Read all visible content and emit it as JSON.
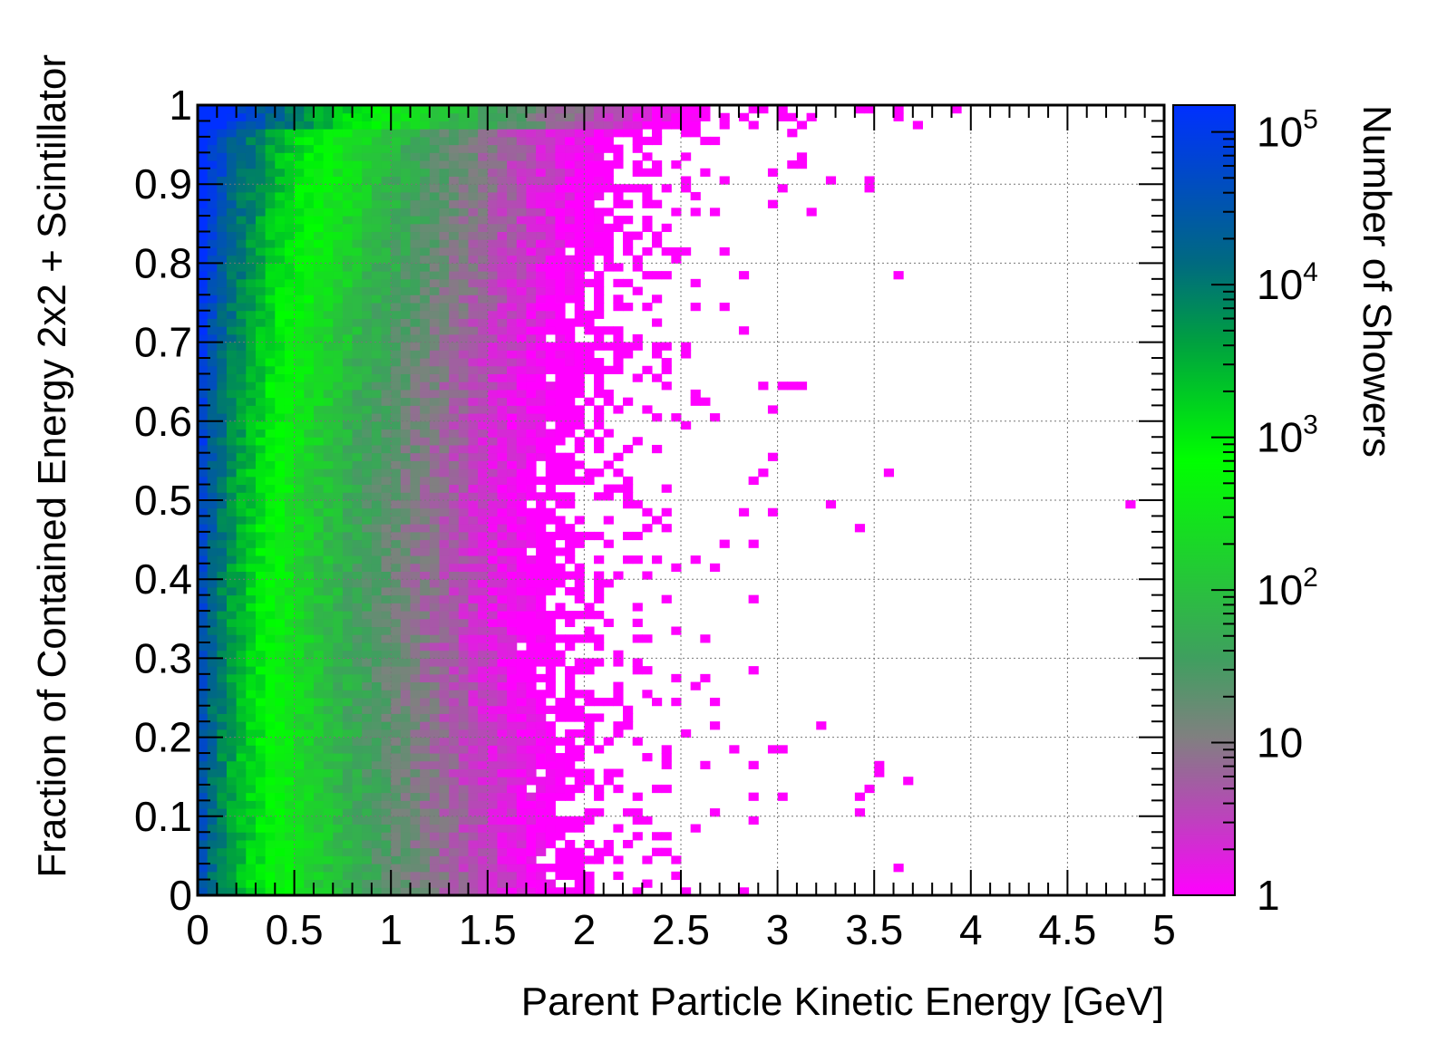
{
  "chart_data": {
    "type": "heatmap",
    "title": "",
    "xlabel": "Parent Particle Kinetic Energy [GeV]",
    "ylabel": "Fraction of Contained Energy 2x2 + Scintillator",
    "zlabel": "Number of Showers",
    "xlim": [
      0,
      5
    ],
    "ylim": [
      0,
      1
    ],
    "zlim": [
      1,
      150000
    ],
    "z_scale": "log",
    "grid": true,
    "x_ticks": [
      "0",
      "0.5",
      "1",
      "1.5",
      "2",
      "2.5",
      "3",
      "3.5",
      "4",
      "4.5",
      "5"
    ],
    "y_ticks": [
      "0",
      "0.1",
      "0.2",
      "0.3",
      "0.4",
      "0.5",
      "0.6",
      "0.7",
      "0.8",
      "0.9",
      "1"
    ],
    "z_ticks": [
      {
        "value": 1,
        "base": "1",
        "exp": ""
      },
      {
        "value": 10,
        "base": "10",
        "exp": ""
      },
      {
        "value": 100,
        "base": "10",
        "exp": "2"
      },
      {
        "value": 1000,
        "base": "10",
        "exp": "3"
      },
      {
        "value": 10000,
        "base": "10",
        "exp": "4"
      },
      {
        "value": 100000,
        "base": "10",
        "exp": "5"
      }
    ],
    "binning": {
      "nx": 100,
      "ny": 100,
      "x_min": 0,
      "x_max": 5,
      "y_min": 0,
      "y_max": 1
    },
    "density_model": {
      "description_of_trend": "Counts concentrated at low kinetic energy (0-0.5 GeV) with peak near fraction 0.9-1.0; counts fall off with increasing energy, sparse single-count bins extend to ~5 GeV mostly at high fraction",
      "peak_count": 150000,
      "peak_location": [
        0.025,
        0.985
      ]
    },
    "palette": {
      "stops": [
        "#ff00ff",
        "#bb44bb",
        "#808080",
        "#3f9f5f",
        "#00ff00",
        "#00a040",
        "#006a80",
        "#0030ff"
      ],
      "positions": [
        0.0,
        0.1,
        0.2,
        0.3,
        0.55,
        0.7,
        0.8,
        1.0
      ]
    }
  }
}
